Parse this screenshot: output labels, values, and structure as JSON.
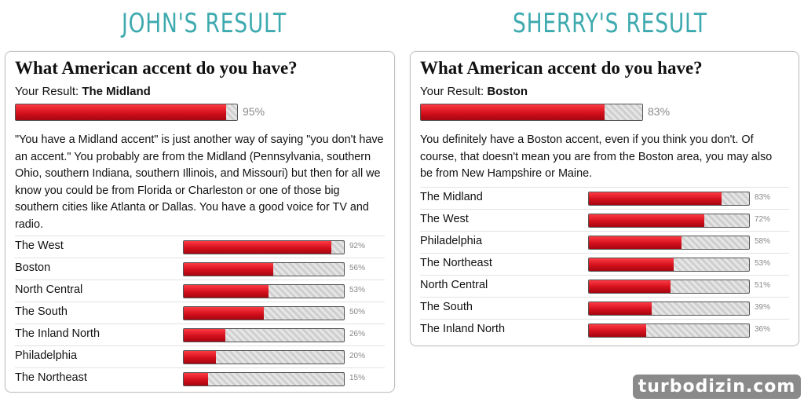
{
  "headings": {
    "john": "JOHN'S RESULT",
    "sherry": "SHERRY'S RESULT"
  },
  "john": {
    "title": "What American accent do you have?",
    "result_prefix": "Your Result:",
    "result_name": "The Midland",
    "result_percent": 95,
    "result_percent_label": "95%",
    "description": "\"You have a Midland accent\" is just another way of saying \"you don't have an accent.\" You probably are from the Midland (Pennsylvania, southern Ohio, southern Indiana, southern Illinois, and Missouri) but then for all we know you could be from Florida or Charleston or one of those big southern cities like Atlanta or Dallas. You have a good voice for TV and radio.",
    "rows": [
      {
        "label": "The West",
        "percent": 92,
        "pct_label": "92%"
      },
      {
        "label": "Boston",
        "percent": 56,
        "pct_label": "56%"
      },
      {
        "label": "North Central",
        "percent": 53,
        "pct_label": "53%"
      },
      {
        "label": "The South",
        "percent": 50,
        "pct_label": "50%"
      },
      {
        "label": "The Inland North",
        "percent": 26,
        "pct_label": "26%"
      },
      {
        "label": "Philadelphia",
        "percent": 20,
        "pct_label": "20%"
      },
      {
        "label": "The Northeast",
        "percent": 15,
        "pct_label": "15%"
      }
    ]
  },
  "sherry": {
    "title": "What American accent do you have?",
    "result_prefix": "Your Result:",
    "result_name": "Boston",
    "result_percent": 83,
    "result_percent_label": "83%",
    "description": "You definitely have a Boston accent, even if you think you don't. Of course, that doesn't mean you are from the Boston area, you may also be from New Hampshire or Maine.",
    "rows": [
      {
        "label": "The Midland",
        "percent": 83,
        "pct_label": "83%"
      },
      {
        "label": "The West",
        "percent": 72,
        "pct_label": "72%"
      },
      {
        "label": "Philadelphia",
        "percent": 58,
        "pct_label": "58%"
      },
      {
        "label": "The Northeast",
        "percent": 53,
        "pct_label": "53%"
      },
      {
        "label": "North Central",
        "percent": 51,
        "pct_label": "51%"
      },
      {
        "label": "The South",
        "percent": 39,
        "pct_label": "39%"
      },
      {
        "label": "The Inland North",
        "percent": 36,
        "pct_label": "36%"
      }
    ]
  },
  "watermark": "turbodizin.com",
  "colors": {
    "heading": "#3eaaaf",
    "bar_fill": "#d3101c",
    "bar_track": "#dcdcdc"
  }
}
